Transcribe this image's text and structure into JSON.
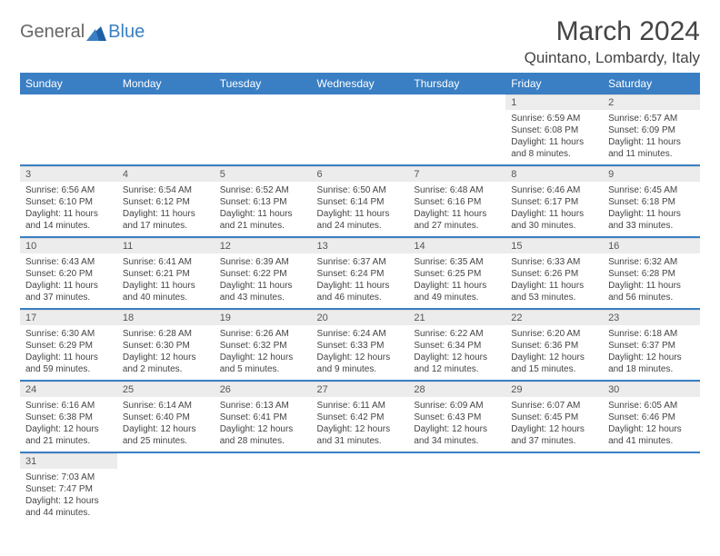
{
  "logo": {
    "text1": "General",
    "text2": "Blue"
  },
  "title": "March 2024",
  "location": "Quintano, Lombardy, Italy",
  "colors": {
    "header_bg": "#3a7fc4",
    "header_text": "#ffffff",
    "daynum_bg": "#ececec",
    "text": "#444444",
    "divider": "#3a7fc4"
  },
  "day_headers": [
    "Sunday",
    "Monday",
    "Tuesday",
    "Wednesday",
    "Thursday",
    "Friday",
    "Saturday"
  ],
  "weeks": [
    [
      {
        "n": "",
        "lines": []
      },
      {
        "n": "",
        "lines": []
      },
      {
        "n": "",
        "lines": []
      },
      {
        "n": "",
        "lines": []
      },
      {
        "n": "",
        "lines": []
      },
      {
        "n": "1",
        "lines": [
          "Sunrise: 6:59 AM",
          "Sunset: 6:08 PM",
          "Daylight: 11 hours and 8 minutes."
        ]
      },
      {
        "n": "2",
        "lines": [
          "Sunrise: 6:57 AM",
          "Sunset: 6:09 PM",
          "Daylight: 11 hours and 11 minutes."
        ]
      }
    ],
    [
      {
        "n": "3",
        "lines": [
          "Sunrise: 6:56 AM",
          "Sunset: 6:10 PM",
          "Daylight: 11 hours and 14 minutes."
        ]
      },
      {
        "n": "4",
        "lines": [
          "Sunrise: 6:54 AM",
          "Sunset: 6:12 PM",
          "Daylight: 11 hours and 17 minutes."
        ]
      },
      {
        "n": "5",
        "lines": [
          "Sunrise: 6:52 AM",
          "Sunset: 6:13 PM",
          "Daylight: 11 hours and 21 minutes."
        ]
      },
      {
        "n": "6",
        "lines": [
          "Sunrise: 6:50 AM",
          "Sunset: 6:14 PM",
          "Daylight: 11 hours and 24 minutes."
        ]
      },
      {
        "n": "7",
        "lines": [
          "Sunrise: 6:48 AM",
          "Sunset: 6:16 PM",
          "Daylight: 11 hours and 27 minutes."
        ]
      },
      {
        "n": "8",
        "lines": [
          "Sunrise: 6:46 AM",
          "Sunset: 6:17 PM",
          "Daylight: 11 hours and 30 minutes."
        ]
      },
      {
        "n": "9",
        "lines": [
          "Sunrise: 6:45 AM",
          "Sunset: 6:18 PM",
          "Daylight: 11 hours and 33 minutes."
        ]
      }
    ],
    [
      {
        "n": "10",
        "lines": [
          "Sunrise: 6:43 AM",
          "Sunset: 6:20 PM",
          "Daylight: 11 hours and 37 minutes."
        ]
      },
      {
        "n": "11",
        "lines": [
          "Sunrise: 6:41 AM",
          "Sunset: 6:21 PM",
          "Daylight: 11 hours and 40 minutes."
        ]
      },
      {
        "n": "12",
        "lines": [
          "Sunrise: 6:39 AM",
          "Sunset: 6:22 PM",
          "Daylight: 11 hours and 43 minutes."
        ]
      },
      {
        "n": "13",
        "lines": [
          "Sunrise: 6:37 AM",
          "Sunset: 6:24 PM",
          "Daylight: 11 hours and 46 minutes."
        ]
      },
      {
        "n": "14",
        "lines": [
          "Sunrise: 6:35 AM",
          "Sunset: 6:25 PM",
          "Daylight: 11 hours and 49 minutes."
        ]
      },
      {
        "n": "15",
        "lines": [
          "Sunrise: 6:33 AM",
          "Sunset: 6:26 PM",
          "Daylight: 11 hours and 53 minutes."
        ]
      },
      {
        "n": "16",
        "lines": [
          "Sunrise: 6:32 AM",
          "Sunset: 6:28 PM",
          "Daylight: 11 hours and 56 minutes."
        ]
      }
    ],
    [
      {
        "n": "17",
        "lines": [
          "Sunrise: 6:30 AM",
          "Sunset: 6:29 PM",
          "Daylight: 11 hours and 59 minutes."
        ]
      },
      {
        "n": "18",
        "lines": [
          "Sunrise: 6:28 AM",
          "Sunset: 6:30 PM",
          "Daylight: 12 hours and 2 minutes."
        ]
      },
      {
        "n": "19",
        "lines": [
          "Sunrise: 6:26 AM",
          "Sunset: 6:32 PM",
          "Daylight: 12 hours and 5 minutes."
        ]
      },
      {
        "n": "20",
        "lines": [
          "Sunrise: 6:24 AM",
          "Sunset: 6:33 PM",
          "Daylight: 12 hours and 9 minutes."
        ]
      },
      {
        "n": "21",
        "lines": [
          "Sunrise: 6:22 AM",
          "Sunset: 6:34 PM",
          "Daylight: 12 hours and 12 minutes."
        ]
      },
      {
        "n": "22",
        "lines": [
          "Sunrise: 6:20 AM",
          "Sunset: 6:36 PM",
          "Daylight: 12 hours and 15 minutes."
        ]
      },
      {
        "n": "23",
        "lines": [
          "Sunrise: 6:18 AM",
          "Sunset: 6:37 PM",
          "Daylight: 12 hours and 18 minutes."
        ]
      }
    ],
    [
      {
        "n": "24",
        "lines": [
          "Sunrise: 6:16 AM",
          "Sunset: 6:38 PM",
          "Daylight: 12 hours and 21 minutes."
        ]
      },
      {
        "n": "25",
        "lines": [
          "Sunrise: 6:14 AM",
          "Sunset: 6:40 PM",
          "Daylight: 12 hours and 25 minutes."
        ]
      },
      {
        "n": "26",
        "lines": [
          "Sunrise: 6:13 AM",
          "Sunset: 6:41 PM",
          "Daylight: 12 hours and 28 minutes."
        ]
      },
      {
        "n": "27",
        "lines": [
          "Sunrise: 6:11 AM",
          "Sunset: 6:42 PM",
          "Daylight: 12 hours and 31 minutes."
        ]
      },
      {
        "n": "28",
        "lines": [
          "Sunrise: 6:09 AM",
          "Sunset: 6:43 PM",
          "Daylight: 12 hours and 34 minutes."
        ]
      },
      {
        "n": "29",
        "lines": [
          "Sunrise: 6:07 AM",
          "Sunset: 6:45 PM",
          "Daylight: 12 hours and 37 minutes."
        ]
      },
      {
        "n": "30",
        "lines": [
          "Sunrise: 6:05 AM",
          "Sunset: 6:46 PM",
          "Daylight: 12 hours and 41 minutes."
        ]
      }
    ],
    [
      {
        "n": "31",
        "lines": [
          "Sunrise: 7:03 AM",
          "Sunset: 7:47 PM",
          "Daylight: 12 hours and 44 minutes."
        ]
      },
      {
        "n": "",
        "lines": []
      },
      {
        "n": "",
        "lines": []
      },
      {
        "n": "",
        "lines": []
      },
      {
        "n": "",
        "lines": []
      },
      {
        "n": "",
        "lines": []
      },
      {
        "n": "",
        "lines": []
      }
    ]
  ]
}
